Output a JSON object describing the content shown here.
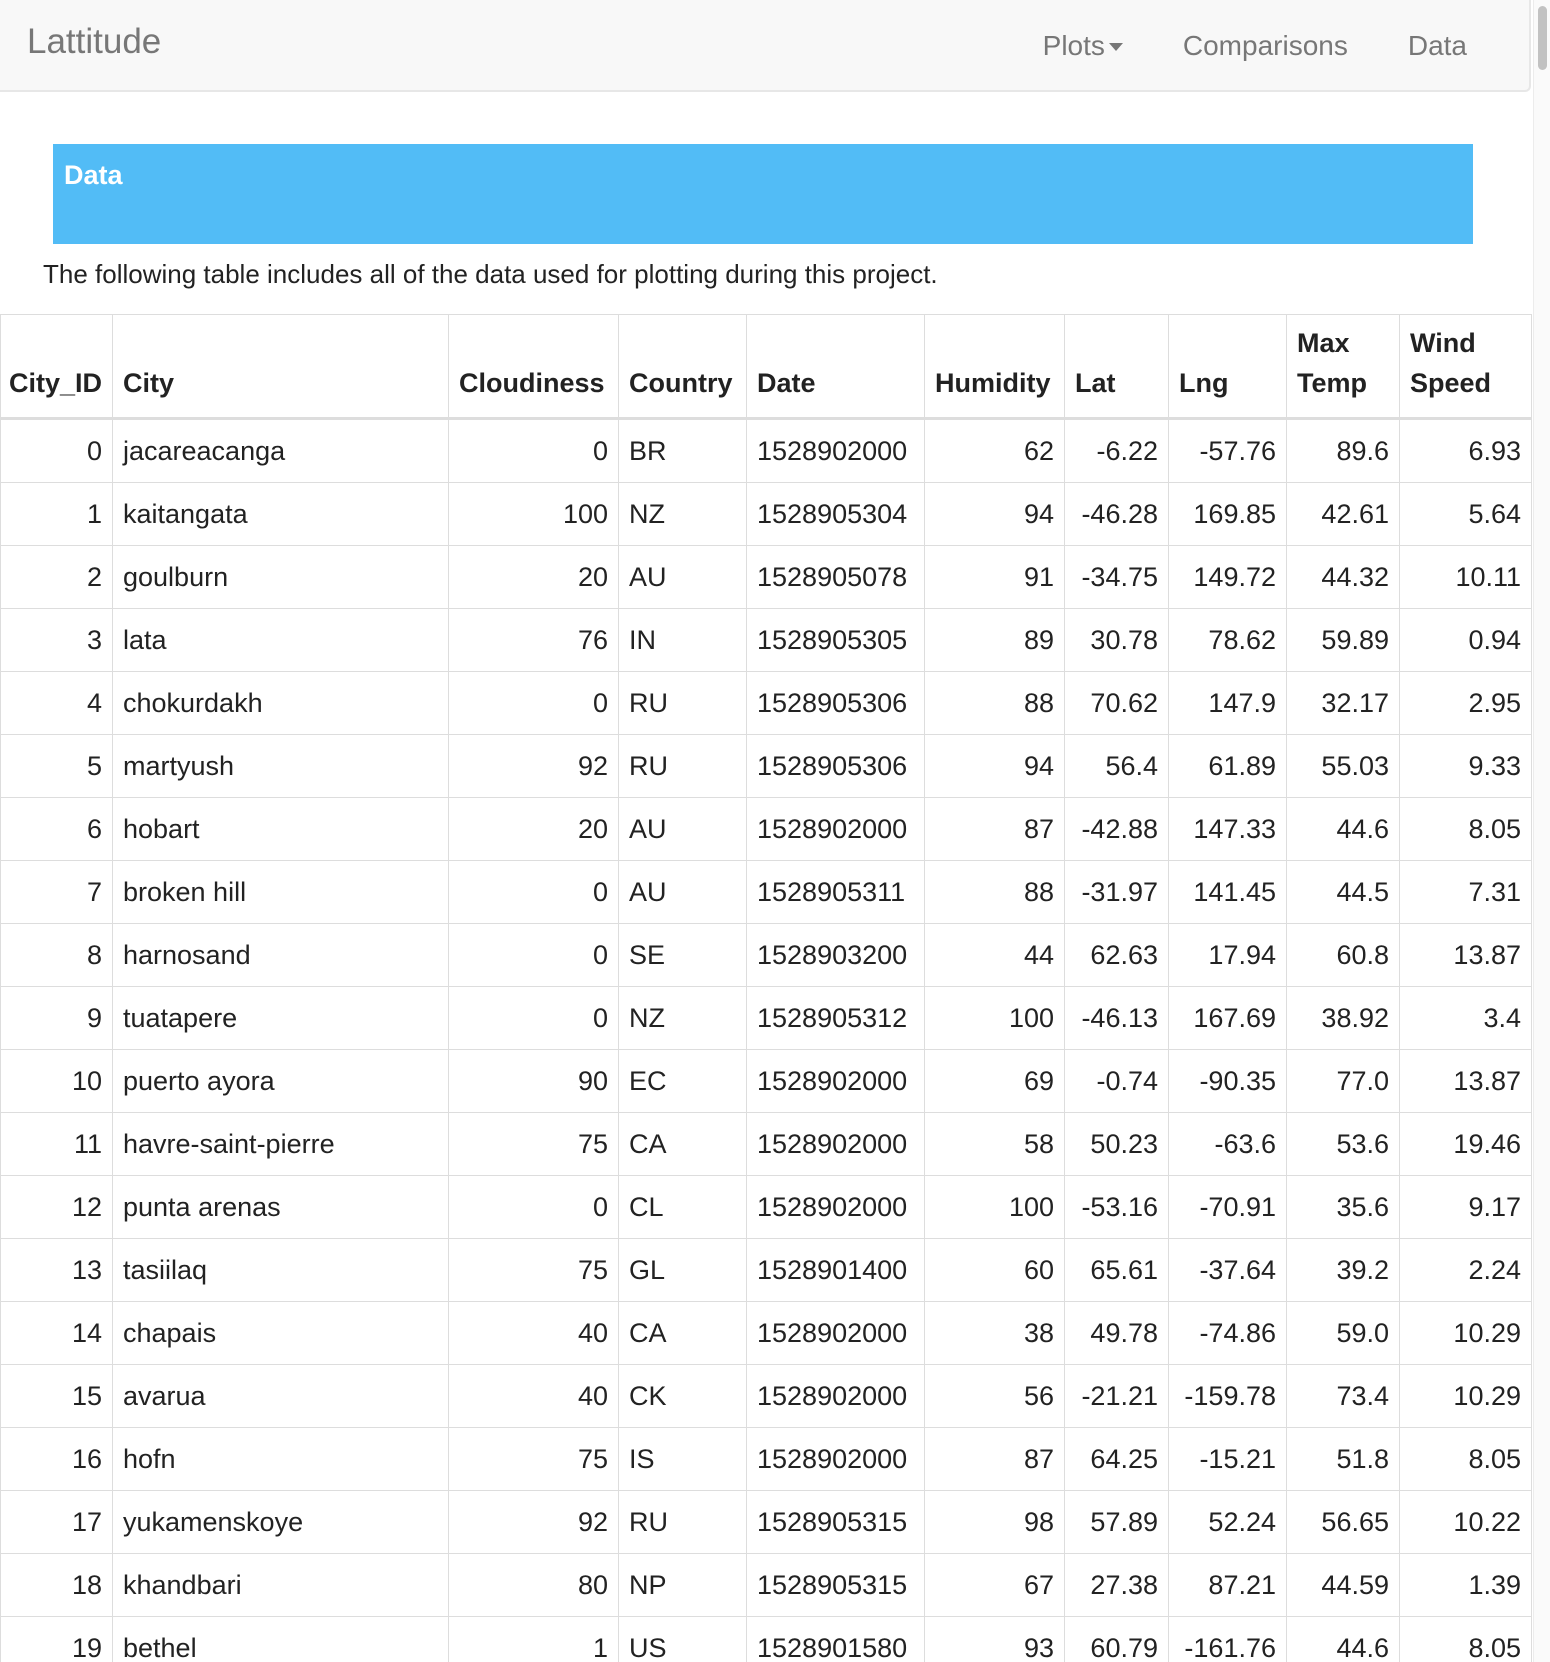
{
  "navbar": {
    "brand": "Lattitude",
    "links": {
      "plots": "Plots",
      "comparisons": "Comparisons",
      "data": "Data"
    }
  },
  "banner": {
    "title": "Data"
  },
  "intro": "The following table includes all of the data used for plotting during this project.",
  "table": {
    "columns": [
      "City_ID",
      "City",
      "Cloudiness",
      "Country",
      "Date",
      "Humidity",
      "Lat",
      "Lng",
      "Max Temp",
      "Wind Speed"
    ],
    "rows": [
      [
        "0",
        "jacareacanga",
        "0",
        "BR",
        "1528902000",
        "62",
        "-6.22",
        "-57.76",
        "89.6",
        "6.93"
      ],
      [
        "1",
        "kaitangata",
        "100",
        "NZ",
        "1528905304",
        "94",
        "-46.28",
        "169.85",
        "42.61",
        "5.64"
      ],
      [
        "2",
        "goulburn",
        "20",
        "AU",
        "1528905078",
        "91",
        "-34.75",
        "149.72",
        "44.32",
        "10.11"
      ],
      [
        "3",
        "lata",
        "76",
        "IN",
        "1528905305",
        "89",
        "30.78",
        "78.62",
        "59.89",
        "0.94"
      ],
      [
        "4",
        "chokurdakh",
        "0",
        "RU",
        "1528905306",
        "88",
        "70.62",
        "147.9",
        "32.17",
        "2.95"
      ],
      [
        "5",
        "martyush",
        "92",
        "RU",
        "1528905306",
        "94",
        "56.4",
        "61.89",
        "55.03",
        "9.33"
      ],
      [
        "6",
        "hobart",
        "20",
        "AU",
        "1528902000",
        "87",
        "-42.88",
        "147.33",
        "44.6",
        "8.05"
      ],
      [
        "7",
        "broken hill",
        "0",
        "AU",
        "1528905311",
        "88",
        "-31.97",
        "141.45",
        "44.5",
        "7.31"
      ],
      [
        "8",
        "harnosand",
        "0",
        "SE",
        "1528903200",
        "44",
        "62.63",
        "17.94",
        "60.8",
        "13.87"
      ],
      [
        "9",
        "tuatapere",
        "0",
        "NZ",
        "1528905312",
        "100",
        "-46.13",
        "167.69",
        "38.92",
        "3.4"
      ],
      [
        "10",
        "puerto ayora",
        "90",
        "EC",
        "1528902000",
        "69",
        "-0.74",
        "-90.35",
        "77.0",
        "13.87"
      ],
      [
        "11",
        "havre-saint-pierre",
        "75",
        "CA",
        "1528902000",
        "58",
        "50.23",
        "-63.6",
        "53.6",
        "19.46"
      ],
      [
        "12",
        "punta arenas",
        "0",
        "CL",
        "1528902000",
        "100",
        "-53.16",
        "-70.91",
        "35.6",
        "9.17"
      ],
      [
        "13",
        "tasiilaq",
        "75",
        "GL",
        "1528901400",
        "60",
        "65.61",
        "-37.64",
        "39.2",
        "2.24"
      ],
      [
        "14",
        "chapais",
        "40",
        "CA",
        "1528902000",
        "38",
        "49.78",
        "-74.86",
        "59.0",
        "10.29"
      ],
      [
        "15",
        "avarua",
        "40",
        "CK",
        "1528902000",
        "56",
        "-21.21",
        "-159.78",
        "73.4",
        "10.29"
      ],
      [
        "16",
        "hofn",
        "75",
        "IS",
        "1528902000",
        "87",
        "64.25",
        "-15.21",
        "51.8",
        "8.05"
      ],
      [
        "17",
        "yukamenskoye",
        "92",
        "RU",
        "1528905315",
        "98",
        "57.89",
        "52.24",
        "56.65",
        "10.22"
      ],
      [
        "18",
        "khandbari",
        "80",
        "NP",
        "1528905315",
        "67",
        "27.38",
        "87.21",
        "44.59",
        "1.39"
      ],
      [
        "19",
        "bethel",
        "1",
        "US",
        "1528901580",
        "93",
        "60.79",
        "-161.76",
        "44.6",
        "8.05"
      ]
    ]
  }
}
